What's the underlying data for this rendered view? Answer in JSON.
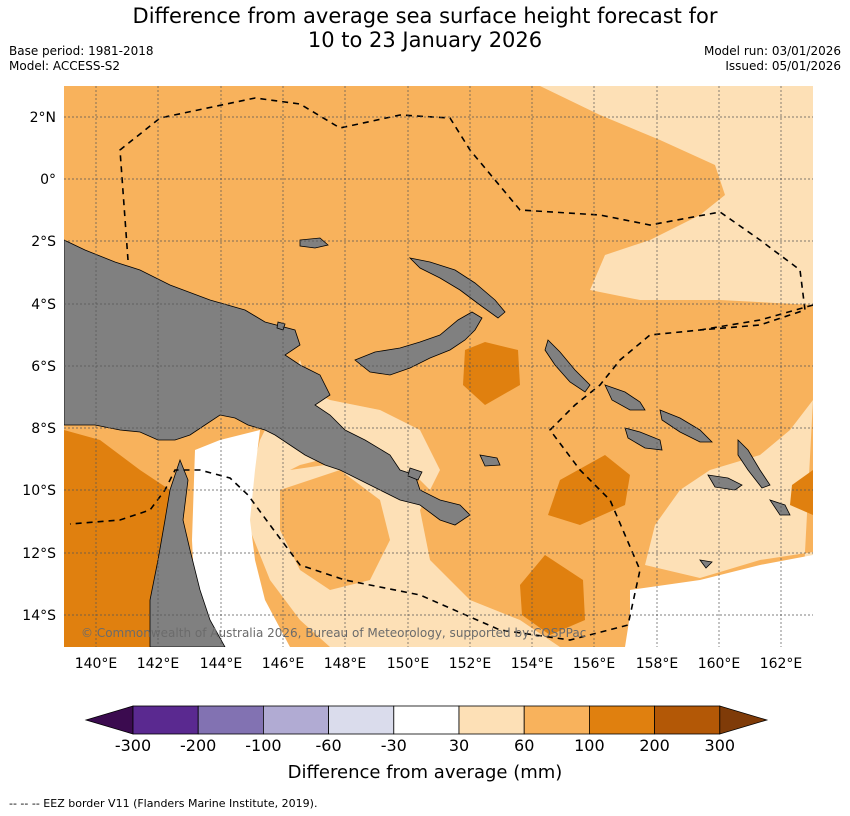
{
  "title": {
    "line1": "Difference from average sea surface height forecast for",
    "line2": "10 to 23 January 2026"
  },
  "meta": {
    "base_period": "Base period: 1981-2018",
    "model": "Model: ACCESS-S2",
    "model_run": "Model run: 03/01/2026",
    "issued": "Issued: 05/01/2026"
  },
  "map": {
    "lon_ticks": [
      "140°E",
      "142°E",
      "144°E",
      "146°E",
      "148°E",
      "150°E",
      "152°E",
      "154°E",
      "156°E",
      "158°E",
      "160°E",
      "162°E"
    ],
    "lat_ticks": [
      "2°N",
      "0°",
      "2°S",
      "4°S",
      "6°S",
      "8°S",
      "10°S",
      "12°S",
      "14°S"
    ],
    "copyright": "© Commonwealth of Australia 2026, Bureau of Meteorology, supported by COSPPac",
    "colors": {
      "land": "#808080",
      "c30_60": "#fde0b6",
      "c60_100": "#f8b25c",
      "c100_200": "#e0800f",
      "neutral": "#ffffff",
      "gridline": "#555555"
    }
  },
  "colorbar": {
    "title": "Difference from average (mm)",
    "labels": [
      "-300",
      "-200",
      "-100",
      "-60",
      "-30",
      "30",
      "60",
      "100",
      "200",
      "300"
    ],
    "colors": [
      "#3b0b4f",
      "#5a2990",
      "#8272b2",
      "#b1abd3",
      "#dadcec",
      "#ffffff",
      "#fde0b6",
      "#f8b25c",
      "#e0800f",
      "#b35806",
      "#7f3b08"
    ]
  },
  "footnote": "--  --  -- EEZ border V11 (Flanders Marine Institute, 2019)."
}
